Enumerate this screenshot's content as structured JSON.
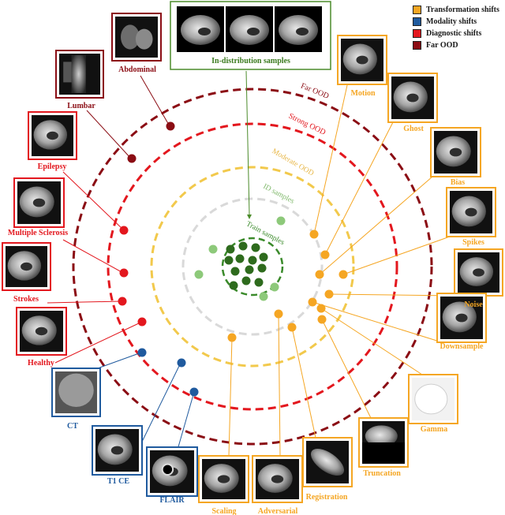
{
  "legend": [
    {
      "label": "Transformation shifts",
      "color": "#f5a623"
    },
    {
      "label": "Modality shifts",
      "color": "#1f5a9e"
    },
    {
      "label": "Diagnostic shifts",
      "color": "#e3171e"
    },
    {
      "label": "Far OOD",
      "color": "#8b0d14"
    }
  ],
  "rings": {
    "far": "Far OOD",
    "strong": "Strong OOD",
    "moderate": "Moderate OOD",
    "id": "ID samples",
    "train": "Train samples"
  },
  "id_box": {
    "label": "In-distribution samples"
  },
  "far_ood": [
    "Abdominal",
    "Lumbar"
  ],
  "diagnostic": [
    "Epilepsy",
    "Multiple Sclerosis",
    "Strokes",
    "Healthy"
  ],
  "modality": [
    "CT",
    "T1 CE",
    "FLAIR"
  ],
  "transformation": [
    "Motion",
    "Ghost",
    "Bias",
    "Spikes",
    "Noise",
    "Downsample",
    "Gamma",
    "Truncation",
    "Registration",
    "Adversarial",
    "Scaling"
  ],
  "colors": {
    "far_ring": "#8b0d14",
    "strong_ring": "#e3171e",
    "moderate_ring": "#f2c94c",
    "id_ring": "#d9d9d9",
    "train_ring": "#3a8a2a",
    "train_dot": "#2e6b1d",
    "id_dot": "#8dc97a",
    "transformation": "#f5a623",
    "modality": "#1f5a9e",
    "diagnostic": "#e3171e",
    "far_ood": "#8b0d14",
    "id_box": "#4b8b2a"
  }
}
